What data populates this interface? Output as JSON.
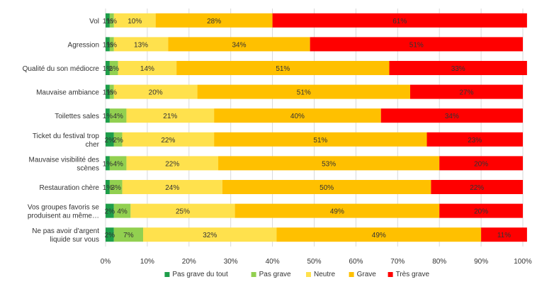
{
  "chart_data": {
    "type": "bar",
    "orientation": "horizontal",
    "stacked": "percent",
    "categories": [
      "Vol",
      "Agression",
      "Qualité du son médiocre",
      "Mauvaise ambiance",
      "Toilettes sales",
      "Ticket du festival trop cher",
      "Mauvaise visibilité des scènes",
      "Restauration chère",
      "Vos groupes favoris se produisent au même…",
      "Ne pas avoir d'argent liquide sur vous"
    ],
    "series": [
      {
        "name": "Pas grave du tout",
        "color": "#1e9e4a",
        "values": [
          1,
          1,
          1,
          1,
          1,
          2,
          1,
          1,
          2,
          2
        ]
      },
      {
        "name": "Pas grave",
        "color": "#92d050",
        "values": [
          1,
          1,
          2,
          1,
          4,
          2,
          4,
          3,
          4,
          7
        ]
      },
      {
        "name": "Neutre",
        "color": "#ffe14d",
        "values": [
          10,
          13,
          14,
          20,
          21,
          22,
          22,
          24,
          25,
          32
        ]
      },
      {
        "name": "Grave",
        "color": "#ffc000",
        "values": [
          28,
          34,
          51,
          51,
          40,
          51,
          53,
          50,
          49,
          49
        ]
      },
      {
        "name": "Très grave",
        "color": "#ff0000",
        "values": [
          61,
          51,
          33,
          27,
          34,
          23,
          20,
          22,
          20,
          11
        ]
      }
    ],
    "xlim": [
      0,
      100
    ],
    "x_ticks": [
      "0%",
      "10%",
      "20%",
      "30%",
      "40%",
      "50%",
      "60%",
      "70%",
      "80%",
      "90%",
      "100%"
    ],
    "value_suffix": "%",
    "grid": true,
    "legend_position": "bottom"
  }
}
